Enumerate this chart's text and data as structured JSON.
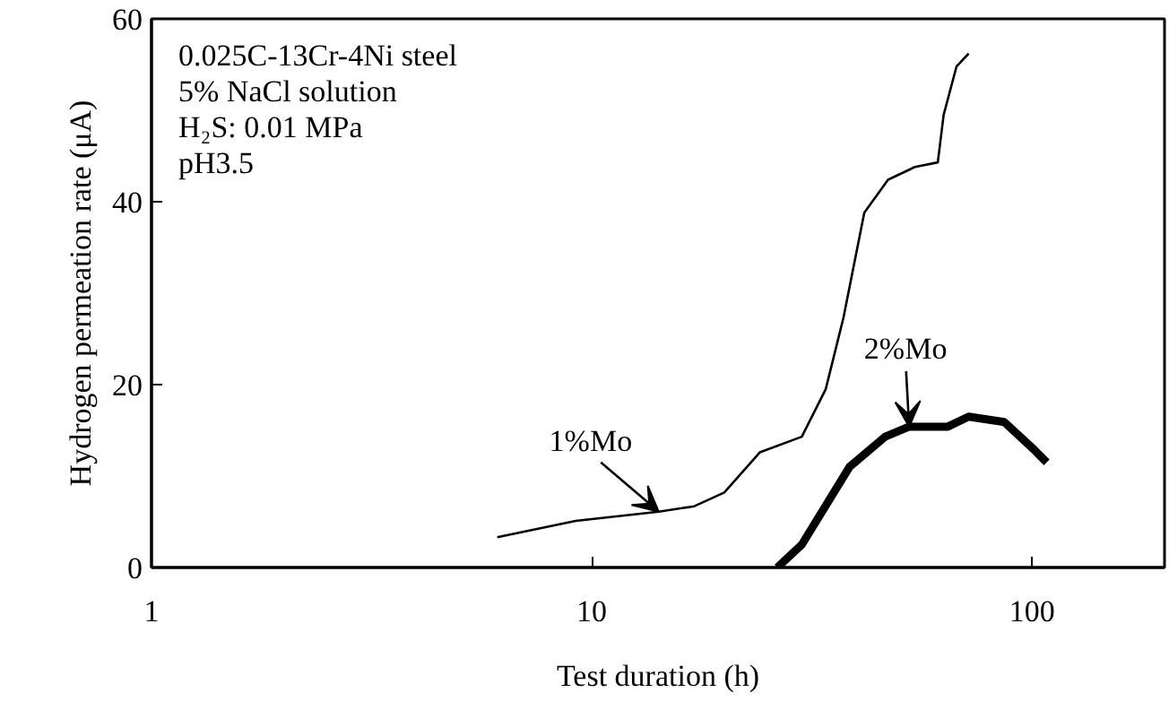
{
  "chart_data": {
    "type": "line",
    "xlabel": "Test duration (h)",
    "ylabel": "Hydrogen permeation rate (μA)",
    "log": "x",
    "xlim": [
      1,
      200
    ],
    "ylim": [
      0,
      60
    ],
    "xticks": [
      1,
      10,
      100
    ],
    "yticks": [
      0,
      20,
      40,
      60
    ],
    "grid": false,
    "marker": "none",
    "series": [
      {
        "name": "1%Mo",
        "color": "#000000",
        "x": [
          6.1,
          9.2,
          14.2,
          17.1,
          20,
          24.1,
          30,
          34,
          37.3,
          41.6,
          47.1,
          54.2,
          61.1,
          63,
          67.4,
          71.8
        ],
        "values": [
          3.3,
          5.1,
          6.1,
          6.7,
          8.2,
          12.6,
          14.3,
          19.5,
          27.3,
          38.8,
          42.4,
          43.8,
          44.3,
          49.5,
          54.8,
          56.2
        ]
      },
      {
        "name": "2%Mo",
        "color": "#000000",
        "x": [
          26.4,
          30,
          38.5,
          46.4,
          52.6,
          64.4,
          71.8,
          86.5,
          101,
          108
        ],
        "values": [
          0,
          2.5,
          11,
          14.3,
          15.4,
          15.4,
          16.5,
          15.9,
          12.9,
          11.5
        ]
      }
    ],
    "annotations": [
      "0.025C-13Cr-4Ni steel",
      "5% NaCl solution",
      "H₂S: 0.01 MPa",
      "pH3.5"
    ]
  }
}
